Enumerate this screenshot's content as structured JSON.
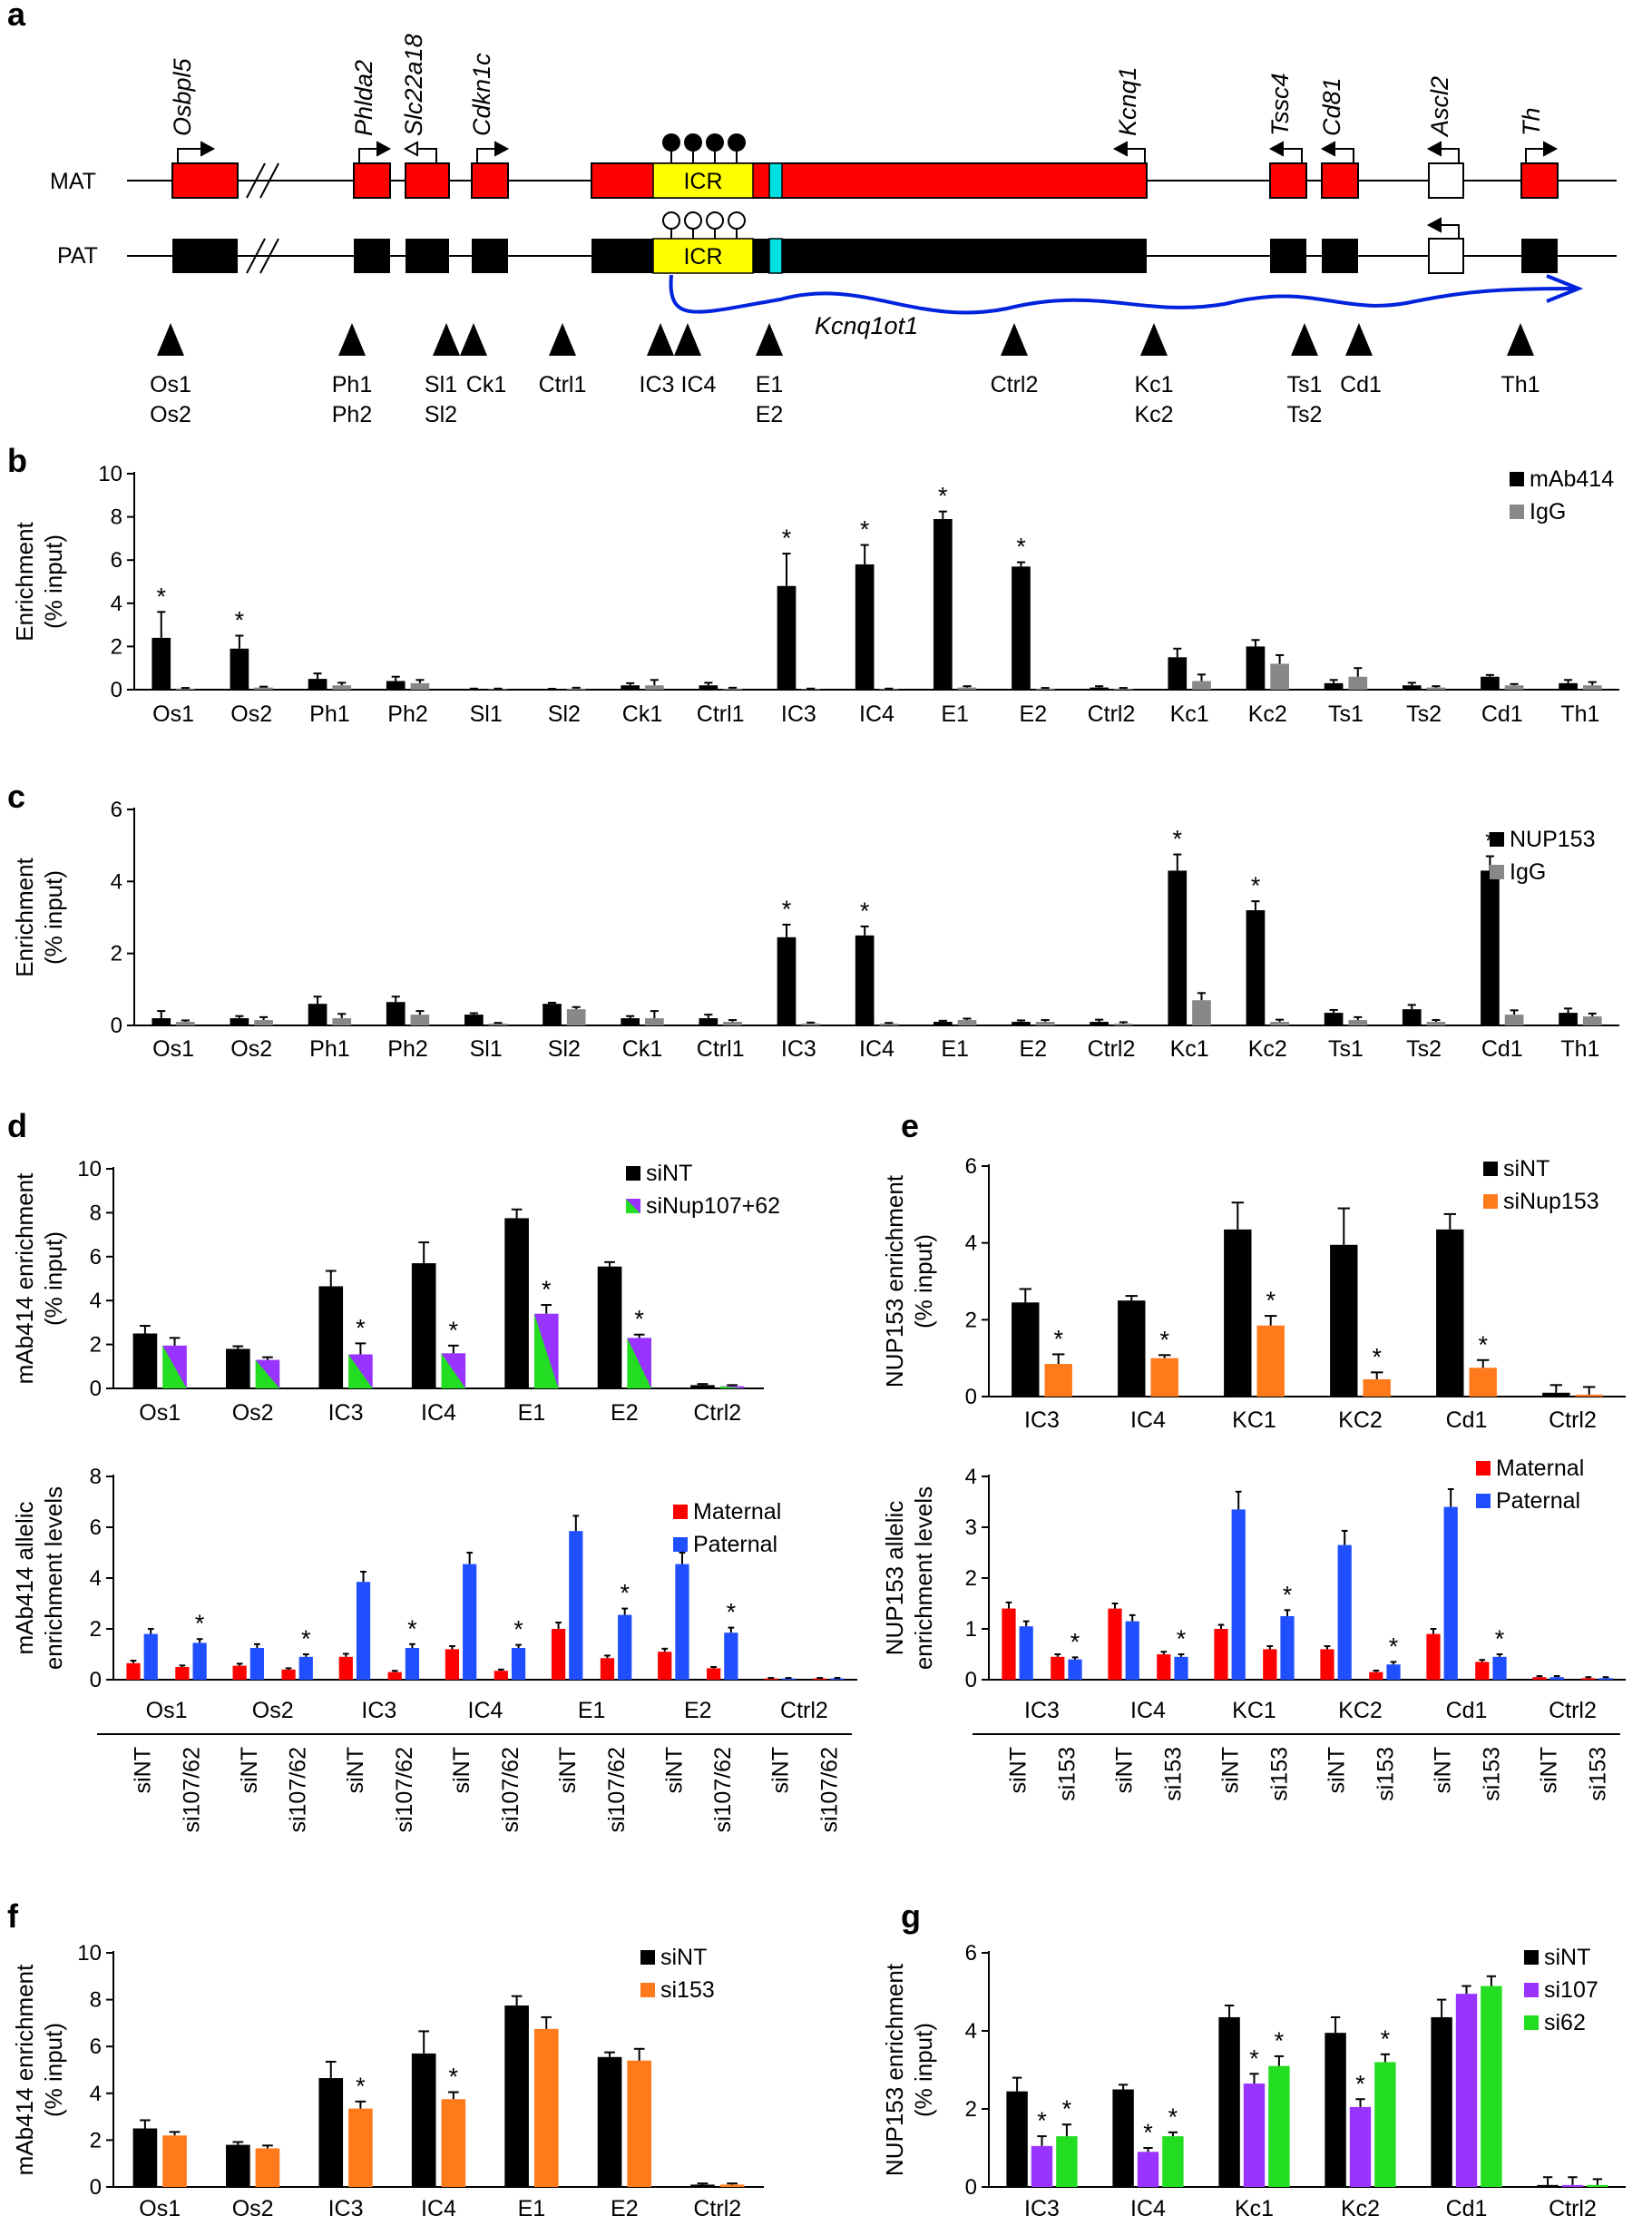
{
  "panel_a": {
    "letter": "a",
    "strands": {
      "maternal": "MAT",
      "paternal": "PAT"
    },
    "genes": [
      "Osbpl5",
      "Phlda2",
      "Slc22a18",
      "Cdkn1c",
      "Kcnq1",
      "Tssc4",
      "Cd81",
      "Ascl2",
      "Th"
    ],
    "icr_label": "ICR",
    "transcript_label": "Kcnq1ot1",
    "probes": [
      [
        "Os1",
        "Os2"
      ],
      [
        "Ph1",
        "Ph2"
      ],
      [
        "Sl1",
        "Sl2"
      ],
      [
        "Ck1"
      ],
      [
        "Ctrl1"
      ],
      [
        "IC3"
      ],
      [
        "IC4"
      ],
      [
        "E1",
        "E2"
      ],
      [
        "Ctrl2"
      ],
      [
        "Kc1",
        "Kc2"
      ],
      [
        "Ts1",
        "Ts2"
      ],
      [
        "Cd1"
      ],
      [
        "Th1"
      ]
    ],
    "colors": {
      "maternal_expressed": "#ff0000",
      "paternal_expressed": "#000000",
      "silent": "#ffffff",
      "icr": "#ffff00",
      "element": "#00e0e0",
      "transcript": "#0022dd"
    }
  },
  "chart_data": [
    {
      "id": "b",
      "type": "bar",
      "letter": "b",
      "ylabel": [
        "Enrichment",
        "(% input)"
      ],
      "ylim": [
        0,
        10
      ],
      "yticks": [
        0,
        2,
        4,
        6,
        8,
        10
      ],
      "categories": [
        "Os1",
        "Os2",
        "Ph1",
        "Ph2",
        "Sl1",
        "Sl2",
        "Ck1",
        "Ctrl1",
        "IC3",
        "IC4",
        "E1",
        "E2",
        "Ctrl2",
        "Kc1",
        "Kc2",
        "Ts1",
        "Ts2",
        "Cd1",
        "Th1"
      ],
      "series": [
        {
          "name": "mAb414",
          "color": "#000000",
          "values": [
            2.4,
            1.9,
            0.5,
            0.4,
            0.03,
            0.02,
            0.2,
            0.2,
            4.8,
            5.8,
            7.9,
            5.7,
            0.1,
            1.5,
            2.0,
            0.3,
            0.2,
            0.6,
            0.3
          ],
          "errors": [
            1.2,
            0.6,
            0.25,
            0.2,
            0.02,
            0.02,
            0.1,
            0.12,
            1.5,
            0.9,
            0.35,
            0.2,
            0.06,
            0.4,
            0.3,
            0.15,
            0.12,
            0.08,
            0.15
          ]
        },
        {
          "name": "IgG",
          "color": "#888888",
          "values": [
            0.05,
            0.1,
            0.2,
            0.3,
            0.03,
            0.05,
            0.2,
            0.05,
            0.03,
            0.03,
            0.1,
            0.05,
            0.05,
            0.4,
            1.2,
            0.6,
            0.1,
            0.2,
            0.2
          ],
          "errors": [
            0.03,
            0.04,
            0.12,
            0.15,
            0.02,
            0.04,
            0.25,
            0.04,
            0.02,
            0.02,
            0.06,
            0.03,
            0.03,
            0.3,
            0.4,
            0.4,
            0.06,
            0.06,
            0.15
          ]
        }
      ],
      "significant": [
        0,
        1,
        8,
        9,
        10,
        11
      ]
    },
    {
      "id": "c",
      "type": "bar",
      "letter": "c",
      "ylabel": [
        "Enrichment",
        "(% input)"
      ],
      "ylim": [
        0,
        6
      ],
      "yticks": [
        0,
        2,
        4,
        6
      ],
      "categories": [
        "Os1",
        "Os2",
        "Ph1",
        "Ph2",
        "Sl1",
        "Sl2",
        "Ck1",
        "Ctrl1",
        "IC3",
        "IC4",
        "E1",
        "E2",
        "Ctrl2",
        "Kc1",
        "Kc2",
        "Ts1",
        "Ts2",
        "Cd1",
        "Th1"
      ],
      "series": [
        {
          "name": "NUP153",
          "color": "#000000",
          "values": [
            0.2,
            0.2,
            0.6,
            0.65,
            0.3,
            0.6,
            0.2,
            0.2,
            2.45,
            2.5,
            0.1,
            0.1,
            0.1,
            4.3,
            3.2,
            0.35,
            0.45,
            4.3,
            0.35
          ],
          "errors": [
            0.2,
            0.06,
            0.2,
            0.15,
            0.04,
            0.03,
            0.06,
            0.1,
            0.35,
            0.25,
            0.03,
            0.04,
            0.06,
            0.45,
            0.25,
            0.08,
            0.12,
            0.4,
            0.12
          ]
        },
        {
          "name": "IgG",
          "color": "#888888",
          "values": [
            0.1,
            0.15,
            0.2,
            0.3,
            0.05,
            0.45,
            0.2,
            0.1,
            0.05,
            0.05,
            0.15,
            0.1,
            0.05,
            0.7,
            0.1,
            0.15,
            0.1,
            0.3,
            0.25
          ],
          "errors": [
            0.04,
            0.08,
            0.12,
            0.1,
            0.02,
            0.06,
            0.2,
            0.05,
            0.03,
            0.02,
            0.04,
            0.05,
            0.04,
            0.2,
            0.06,
            0.08,
            0.05,
            0.12,
            0.08
          ]
        }
      ],
      "significant": [
        8,
        9,
        13,
        14,
        17
      ]
    },
    {
      "id": "d_top",
      "type": "bar",
      "letter": "d",
      "ylabel": [
        "mAb414 enrichment",
        "(% input)"
      ],
      "ylim": [
        0,
        10
      ],
      "yticks": [
        0,
        2,
        4,
        6,
        8,
        10
      ],
      "categories": [
        "Os1",
        "Os2",
        "IC3",
        "IC4",
        "E1",
        "E2",
        "Ctrl2"
      ],
      "series": [
        {
          "name": "siNT",
          "color": "#000000",
          "values": [
            2.5,
            1.8,
            4.65,
            5.7,
            7.75,
            5.55,
            0.15
          ],
          "errors": [
            0.35,
            0.12,
            0.7,
            0.95,
            0.4,
            0.2,
            0.05
          ]
        },
        {
          "name": "siNup107+62",
          "color": "#9933ff",
          "color2": "#22dd22",
          "values": [
            1.95,
            1.3,
            1.55,
            1.6,
            3.4,
            2.3,
            0.1
          ],
          "errors": [
            0.35,
            0.12,
            0.5,
            0.35,
            0.4,
            0.15,
            0.05
          ]
        }
      ],
      "significant": [
        2,
        3,
        4,
        5
      ]
    },
    {
      "id": "d_bottom",
      "type": "bar",
      "ylabel": [
        "mAb414 allelic",
        "enrichment levels"
      ],
      "ylim": [
        0,
        8
      ],
      "yticks": [
        0,
        2,
        4,
        6,
        8
      ],
      "groups": [
        "Os1",
        "Os2",
        "IC3",
        "IC4",
        "E1",
        "E2",
        "Ctrl2"
      ],
      "conditions": [
        "siNT",
        "si107/62"
      ],
      "series": [
        {
          "name": "Maternal",
          "color": "#ff0000",
          "values": [
            0.65,
            0.5,
            0.55,
            0.4,
            0.9,
            0.3,
            1.2,
            0.35,
            2.0,
            0.85,
            1.1,
            0.45,
            0.05,
            0.05
          ],
          "errors": [
            0.1,
            0.06,
            0.08,
            0.05,
            0.12,
            0.05,
            0.12,
            0.05,
            0.25,
            0.1,
            0.12,
            0.05,
            0.02,
            0.02
          ]
        },
        {
          "name": "Paternal",
          "color": "#1f4fff",
          "values": [
            1.8,
            1.45,
            1.25,
            0.9,
            3.85,
            1.25,
            4.55,
            1.25,
            5.85,
            2.55,
            4.55,
            1.85,
            0.05,
            0.05
          ],
          "errors": [
            0.2,
            0.15,
            0.15,
            0.1,
            0.4,
            0.15,
            0.45,
            0.12,
            0.6,
            0.25,
            0.45,
            0.2,
            0.02,
            0.02
          ]
        }
      ],
      "significant": [
        1,
        3,
        5,
        7,
        9,
        11
      ]
    },
    {
      "id": "e_top",
      "type": "bar",
      "letter": "e",
      "ylabel": [
        "NUP153 enrichment",
        "(% input)"
      ],
      "ylim": [
        0,
        6
      ],
      "yticks": [
        0,
        2,
        4,
        6
      ],
      "categories": [
        "IC3",
        "IC4",
        "KC1",
        "KC2",
        "Cd1",
        "Ctrl2"
      ],
      "series": [
        {
          "name": "siNT",
          "color": "#000000",
          "values": [
            2.45,
            2.5,
            4.35,
            3.95,
            4.35,
            0.1
          ],
          "errors": [
            0.35,
            0.12,
            0.7,
            0.95,
            0.4,
            0.2
          ]
        },
        {
          "name": "siNup153",
          "color": "#ff7a1a",
          "values": [
            0.85,
            1.0,
            1.85,
            0.45,
            0.75,
            0.05
          ],
          "errors": [
            0.25,
            0.08,
            0.25,
            0.18,
            0.2,
            0.2
          ]
        }
      ],
      "significant": [
        0,
        1,
        2,
        3,
        4
      ]
    },
    {
      "id": "e_bottom",
      "type": "bar",
      "ylabel": [
        "NUP153 allelic",
        "enrichment levels"
      ],
      "ylim": [
        0,
        4
      ],
      "yticks": [
        0,
        1,
        2,
        3,
        4
      ],
      "groups": [
        "IC3",
        "IC4",
        "KC1",
        "KC2",
        "Cd1",
        "Ctrl2"
      ],
      "conditions": [
        "siNT",
        "si153"
      ],
      "series": [
        {
          "name": "Maternal",
          "color": "#ff0000",
          "values": [
            1.4,
            0.45,
            1.4,
            0.5,
            1.0,
            0.6,
            0.6,
            0.15,
            0.9,
            0.35,
            0.05,
            0.03
          ],
          "errors": [
            0.12,
            0.05,
            0.1,
            0.05,
            0.08,
            0.06,
            0.06,
            0.03,
            0.1,
            0.04,
            0.02,
            0.02
          ]
        },
        {
          "name": "Paternal",
          "color": "#1f4fff",
          "values": [
            1.05,
            0.4,
            1.15,
            0.45,
            3.35,
            1.25,
            2.65,
            0.3,
            3.4,
            0.45,
            0.05,
            0.03
          ],
          "errors": [
            0.1,
            0.04,
            0.12,
            0.05,
            0.35,
            0.12,
            0.28,
            0.05,
            0.35,
            0.05,
            0.02,
            0.02
          ]
        }
      ],
      "significant": [
        1,
        3,
        5,
        7,
        9
      ]
    },
    {
      "id": "f",
      "type": "bar",
      "letter": "f",
      "ylabel": [
        "mAb414 enrichment",
        "(% input)"
      ],
      "ylim": [
        0,
        10
      ],
      "yticks": [
        0,
        2,
        4,
        6,
        8,
        10
      ],
      "categories": [
        "Os1",
        "Os2",
        "IC3",
        "IC4",
        "E1",
        "E2",
        "Ctrl2"
      ],
      "series": [
        {
          "name": "siNT",
          "color": "#000000",
          "values": [
            2.5,
            1.8,
            4.65,
            5.7,
            7.75,
            5.55,
            0.1
          ],
          "errors": [
            0.35,
            0.12,
            0.7,
            0.95,
            0.4,
            0.2,
            0.05
          ]
        },
        {
          "name": "si153",
          "color": "#ff7a1a",
          "values": [
            2.2,
            1.65,
            3.35,
            3.75,
            6.75,
            5.4,
            0.1
          ],
          "errors": [
            0.15,
            0.12,
            0.3,
            0.3,
            0.5,
            0.5,
            0.05
          ]
        }
      ],
      "significant": [
        2,
        3
      ]
    },
    {
      "id": "g",
      "type": "bar",
      "letter": "g",
      "ylabel": [
        "NUP153 enrichment",
        "(% input)"
      ],
      "ylim": [
        0,
        6
      ],
      "yticks": [
        0,
        2,
        4,
        6
      ],
      "categories": [
        "IC3",
        "IC4",
        "Kc1",
        "Kc2",
        "Cd1",
        "Ctrl2"
      ],
      "series": [
        {
          "name": "siNT",
          "color": "#000000",
          "values": [
            2.45,
            2.5,
            4.35,
            3.95,
            4.35,
            0.05
          ],
          "errors": [
            0.35,
            0.12,
            0.3,
            0.4,
            0.45,
            0.2
          ]
        },
        {
          "name": "si107",
          "color": "#9933ff",
          "values": [
            1.05,
            0.9,
            2.65,
            2.05,
            4.95,
            0.05
          ],
          "errors": [
            0.25,
            0.1,
            0.25,
            0.2,
            0.2,
            0.2
          ]
        },
        {
          "name": "si62",
          "color": "#22dd22",
          "values": [
            1.3,
            1.3,
            3.1,
            3.2,
            5.15,
            0.05
          ],
          "errors": [
            0.3,
            0.1,
            0.25,
            0.2,
            0.25,
            0.15
          ]
        }
      ],
      "significant": [
        0,
        1,
        2,
        3
      ]
    }
  ]
}
